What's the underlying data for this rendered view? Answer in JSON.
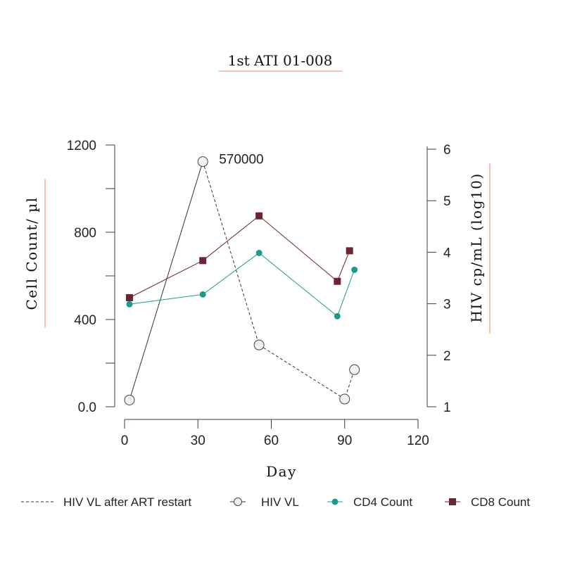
{
  "chart_data": {
    "type": "line",
    "title": "1st ATI 01-008",
    "xlabel": "Day",
    "ylabel_left": "Cell Count/ µl",
    "ylabel_right": "HIV cp/mL (log10)",
    "xlim": [
      0,
      120
    ],
    "ylim_left": [
      0,
      1200
    ],
    "ylim_right": [
      1,
      6
    ],
    "xticks": [
      "0",
      "30",
      "60",
      "90",
      "120"
    ],
    "yticks_left": [
      "0.0",
      "400",
      "800",
      "1200"
    ],
    "yticks_right": [
      "1",
      "2",
      "3",
      "4",
      "5",
      "6"
    ],
    "annotation": {
      "text": "570000",
      "x": 32,
      "y_log10": 5.76
    },
    "series": [
      {
        "name": "CD4 Count",
        "axis": "left",
        "color": "#1a9a8c",
        "marker": "dot",
        "points": [
          [
            2,
            470
          ],
          [
            32,
            515
          ],
          [
            55,
            705
          ],
          [
            87,
            415
          ],
          [
            94,
            628
          ]
        ]
      },
      {
        "name": "CD8 Count",
        "axis": "left",
        "color": "#6b2430",
        "marker": "square",
        "points": [
          [
            2,
            500
          ],
          [
            32,
            670
          ],
          [
            55,
            875
          ],
          [
            87,
            575
          ],
          [
            92,
            715
          ]
        ]
      },
      {
        "name": "HIV VL",
        "axis": "right",
        "color": "#333333",
        "marker": "circle",
        "dash": false,
        "points": [
          [
            2,
            1.13
          ],
          [
            32,
            5.76
          ]
        ]
      },
      {
        "name": "HIV VL after ART restart",
        "axis": "right",
        "color": "#333333",
        "marker": "circle",
        "dash": true,
        "points": [
          [
            32,
            5.76
          ],
          [
            55,
            2.2
          ],
          [
            90,
            1.15
          ],
          [
            94,
            1.72
          ]
        ]
      }
    ],
    "legend": [
      {
        "label": "HIV VL after ART restart",
        "kind": "dash"
      },
      {
        "label": "HIV VL",
        "kind": "circle"
      },
      {
        "label": "CD4 Count",
        "kind": "dot",
        "color": "#1a9a8c"
      },
      {
        "label": "CD8 Count",
        "kind": "square",
        "color": "#6b2430"
      }
    ],
    "legend_position": "bottom"
  }
}
